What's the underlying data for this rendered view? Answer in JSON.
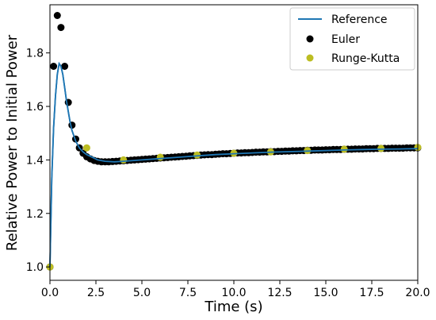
{
  "chart_data": {
    "type": "line",
    "title": "",
    "xlabel": "Time (s)",
    "ylabel": "Relative Power to Initial Power",
    "xlim": [
      0,
      20
    ],
    "ylim": [
      0.95,
      1.98
    ],
    "xticks": [
      0,
      2.5,
      5,
      7.5,
      10,
      12.5,
      15,
      17.5,
      20
    ],
    "xtick_labels": [
      "0.0",
      "2.5",
      "5.0",
      "7.5",
      "10.0",
      "12.5",
      "15.0",
      "17.5",
      "20.0"
    ],
    "yticks": [
      1.0,
      1.2,
      1.4,
      1.6,
      1.8
    ],
    "ytick_labels": [
      "1.0",
      "1.2",
      "1.4",
      "1.6",
      "1.8"
    ],
    "grid": false,
    "legend_position": "top-right",
    "series": [
      {
        "name": "Reference",
        "kind": "line",
        "color": "#1f77b4",
        "x": [
          0,
          0.1,
          0.2,
          0.3,
          0.4,
          0.5,
          0.6,
          0.7,
          0.8,
          0.9,
          1.0,
          1.1,
          1.2,
          1.4,
          1.6,
          1.8,
          2.0,
          2.3,
          2.6,
          3.0,
          3.5,
          4.0,
          5.0,
          6.0,
          7.0,
          8.0,
          9.0,
          10.0,
          11.0,
          12.0,
          13.0,
          14.0,
          15.0,
          16.0,
          17.0,
          18.0,
          19.0,
          20.0
        ],
        "y": [
          1.0,
          1.33,
          1.52,
          1.64,
          1.72,
          1.76,
          1.75,
          1.72,
          1.67,
          1.62,
          1.58,
          1.54,
          1.51,
          1.47,
          1.445,
          1.43,
          1.42,
          1.41,
          1.4,
          1.395,
          1.393,
          1.395,
          1.4,
          1.405,
          1.41,
          1.415,
          1.42,
          1.423,
          1.426,
          1.429,
          1.431,
          1.433,
          1.435,
          1.437,
          1.439,
          1.44,
          1.441,
          1.442
        ]
      },
      {
        "name": "Euler",
        "kind": "scatter",
        "color": "#000000",
        "x": [
          0,
          0.2,
          0.4,
          0.6,
          0.8,
          1.0,
          1.2,
          1.4,
          1.6,
          1.8,
          2.0,
          2.2,
          2.4,
          2.6,
          2.8,
          3.0,
          3.2,
          3.4,
          3.6,
          3.8,
          4.0,
          4.2,
          4.4,
          4.6,
          4.8,
          5.0,
          5.2,
          5.4,
          5.6,
          5.8,
          6.0,
          6.2,
          6.4,
          6.6,
          6.8,
          7.0,
          7.2,
          7.4,
          7.6,
          7.8,
          8.0,
          8.2,
          8.4,
          8.6,
          8.8,
          9.0,
          9.2,
          9.4,
          9.6,
          9.8,
          10.0,
          10.2,
          10.4,
          10.6,
          10.8,
          11.0,
          11.2,
          11.4,
          11.6,
          11.8,
          12.0,
          12.2,
          12.4,
          12.6,
          12.8,
          13.0,
          13.2,
          13.4,
          13.6,
          13.8,
          14.0,
          14.2,
          14.4,
          14.6,
          14.8,
          15.0,
          15.2,
          15.4,
          15.6,
          15.8,
          16.0,
          16.2,
          16.4,
          16.6,
          16.8,
          17.0,
          17.2,
          17.4,
          17.6,
          17.8,
          18.0,
          18.2,
          18.4,
          18.6,
          18.8,
          19.0,
          19.2,
          19.4,
          19.6,
          19.8,
          20.0
        ],
        "y": [
          1.0,
          1.75,
          1.94,
          1.895,
          1.75,
          1.615,
          1.53,
          1.478,
          1.445,
          1.425,
          1.412,
          1.404,
          1.398,
          1.395,
          1.393,
          1.393,
          1.393,
          1.394,
          1.395,
          1.396,
          1.397,
          1.398,
          1.399,
          1.4,
          1.401,
          1.402,
          1.403,
          1.404,
          1.405,
          1.406,
          1.407,
          1.408,
          1.409,
          1.41,
          1.411,
          1.412,
          1.413,
          1.414,
          1.415,
          1.416,
          1.417,
          1.418,
          1.419,
          1.42,
          1.42,
          1.421,
          1.422,
          1.423,
          1.423,
          1.424,
          1.425,
          1.426,
          1.426,
          1.427,
          1.427,
          1.428,
          1.429,
          1.429,
          1.43,
          1.43,
          1.431,
          1.431,
          1.432,
          1.432,
          1.433,
          1.433,
          1.434,
          1.434,
          1.435,
          1.435,
          1.436,
          1.436,
          1.437,
          1.437,
          1.437,
          1.438,
          1.438,
          1.439,
          1.439,
          1.439,
          1.44,
          1.44,
          1.44,
          1.441,
          1.441,
          1.441,
          1.442,
          1.442,
          1.442,
          1.443,
          1.443,
          1.443,
          1.443,
          1.444,
          1.444,
          1.444,
          1.444,
          1.445,
          1.445,
          1.445,
          1.445
        ]
      },
      {
        "name": "Runge-Kutta",
        "kind": "scatter",
        "color": "#bcbd22",
        "x": [
          0,
          2,
          4,
          6,
          8,
          10,
          12,
          14,
          16,
          18,
          20
        ],
        "y": [
          1.0,
          1.445,
          1.4,
          1.41,
          1.418,
          1.425,
          1.43,
          1.435,
          1.44,
          1.443,
          1.447
        ]
      }
    ]
  }
}
